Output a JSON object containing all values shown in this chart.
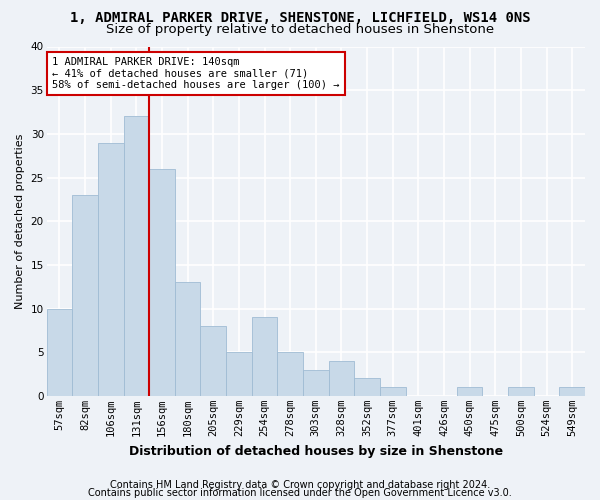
{
  "title1": "1, ADMIRAL PARKER DRIVE, SHENSTONE, LICHFIELD, WS14 0NS",
  "title2": "Size of property relative to detached houses in Shenstone",
  "xlabel": "Distribution of detached houses by size in Shenstone",
  "ylabel": "Number of detached properties",
  "categories": [
    "57sqm",
    "82sqm",
    "106sqm",
    "131sqm",
    "156sqm",
    "180sqm",
    "205sqm",
    "229sqm",
    "254sqm",
    "278sqm",
    "303sqm",
    "328sqm",
    "352sqm",
    "377sqm",
    "401sqm",
    "426sqm",
    "450sqm",
    "475sqm",
    "500sqm",
    "524sqm",
    "549sqm"
  ],
  "values": [
    10,
    23,
    29,
    32,
    26,
    13,
    8,
    5,
    9,
    5,
    3,
    4,
    2,
    1,
    0,
    0,
    1,
    0,
    1,
    0,
    1
  ],
  "bar_color": "#c8d9e8",
  "bar_edge_color": "#a0bcd4",
  "ref_line_index": 3,
  "ref_line_color": "#cc0000",
  "annotation_line1": "1 ADMIRAL PARKER DRIVE: 140sqm",
  "annotation_line2": "← 41% of detached houses are smaller (71)",
  "annotation_line3": "58% of semi-detached houses are larger (100) →",
  "annotation_box_color": "white",
  "annotation_box_edge": "#cc0000",
  "ylim": [
    0,
    40
  ],
  "yticks": [
    0,
    5,
    10,
    15,
    20,
    25,
    30,
    35,
    40
  ],
  "footer1": "Contains HM Land Registry data © Crown copyright and database right 2024.",
  "footer2": "Contains public sector information licensed under the Open Government Licence v3.0.",
  "bg_color": "#eef2f7",
  "grid_color": "#ffffff",
  "title1_fontsize": 10,
  "title2_fontsize": 9.5,
  "xlabel_fontsize": 9,
  "ylabel_fontsize": 8,
  "footer_fontsize": 7,
  "tick_fontsize": 7.5,
  "annotation_fontsize": 7.5
}
